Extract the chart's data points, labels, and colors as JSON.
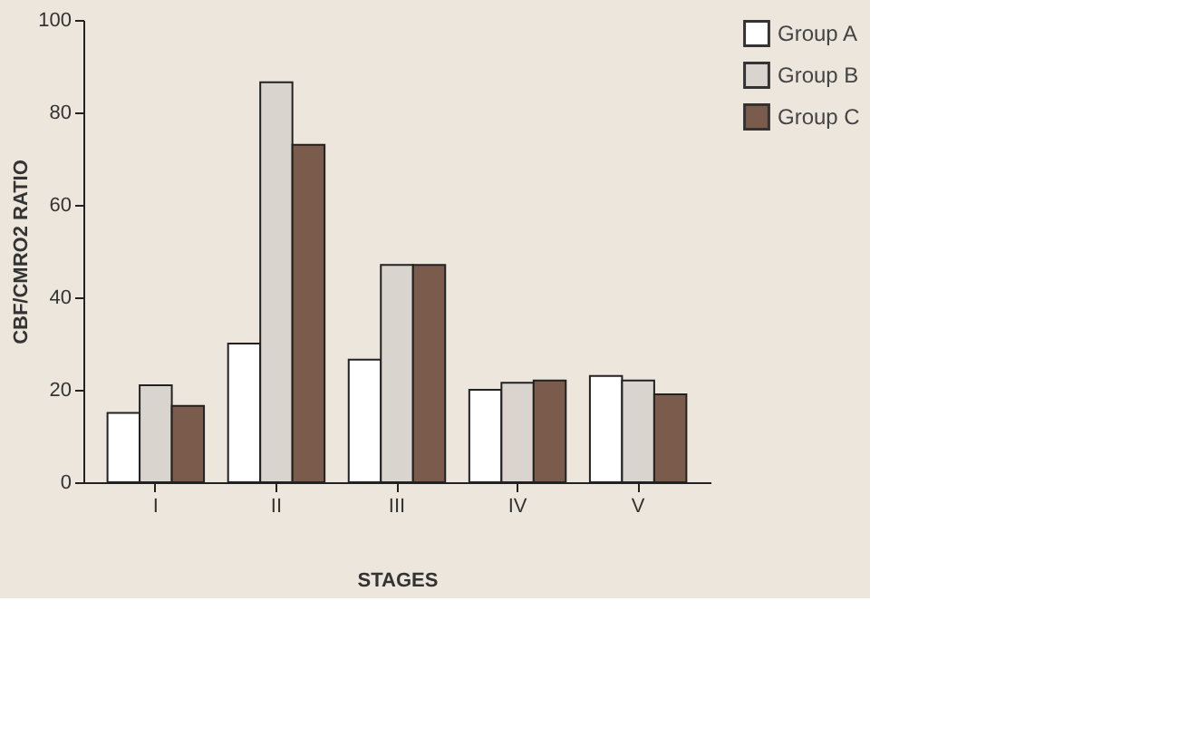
{
  "chart_data": {
    "type": "bar",
    "xlabel": "STAGES",
    "ylabel": "CBF/CMRO2  RATIO",
    "categories": [
      "I",
      "II",
      "III",
      "IV",
      "V"
    ],
    "series": [
      {
        "name": "Group A",
        "color": "#ffffff",
        "values": [
          15,
          30,
          26.5,
          20,
          23
        ]
      },
      {
        "name": "Group B",
        "color": "#d9d4ce",
        "values": [
          21,
          86.5,
          47,
          21.5,
          22
        ]
      },
      {
        "name": "Group C",
        "color": "#7b5b4b",
        "values": [
          16.5,
          73,
          47,
          22,
          19
        ]
      }
    ],
    "ylim": [
      0,
      100
    ],
    "yticks": [
      0,
      20,
      40,
      60,
      80,
      100
    ],
    "grid": false,
    "legend": "right"
  }
}
